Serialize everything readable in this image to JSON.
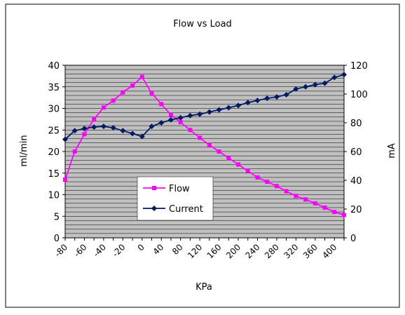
{
  "chart_data": {
    "type": "line",
    "title": "Flow vs Load",
    "xlabel": "KPa",
    "ylabel_left": "ml/min",
    "ylabel_right": "mA",
    "x_tick_labels": [
      "-80",
      "-60",
      "-40",
      "-20",
      "0",
      "40",
      "80",
      "120",
      "160",
      "200",
      "240",
      "280",
      "320",
      "360",
      "400"
    ],
    "y_left": {
      "min": 0,
      "max": 40,
      "ticks": [
        "0",
        "5",
        "10",
        "15",
        "20",
        "25",
        "30",
        "35",
        "40"
      ]
    },
    "y_right": {
      "min": 0,
      "max": 120,
      "ticks": [
        "0",
        "20",
        "40",
        "60",
        "80",
        "100",
        "120"
      ]
    },
    "grid": "horizontal",
    "legend_position": "center-left",
    "series": [
      {
        "name": "Flow",
        "axis": "left",
        "color": "#ff00ff",
        "marker": "square",
        "values": [
          13.5,
          20,
          24,
          27.5,
          30.2,
          31.8,
          33.7,
          35.3,
          37.3,
          33.5,
          31,
          28.5,
          26.8,
          25,
          23.2,
          21.5,
          20,
          18.5,
          17,
          15.5,
          14,
          13,
          12,
          10.8,
          9.7,
          8.9,
          8,
          7,
          6,
          5.3
        ]
      },
      {
        "name": "Current",
        "axis": "right",
        "color": "#001a66",
        "marker": "diamond",
        "values": [
          68.5,
          74.5,
          76,
          77,
          77.5,
          76.5,
          74.5,
          72.5,
          70.5,
          77.5,
          80,
          82,
          83.5,
          85,
          86,
          87.5,
          89,
          90.5,
          92,
          94,
          95.5,
          97,
          98,
          99.5,
          103.5,
          105,
          106.5,
          107.5,
          111.5,
          113.5
        ]
      }
    ]
  }
}
